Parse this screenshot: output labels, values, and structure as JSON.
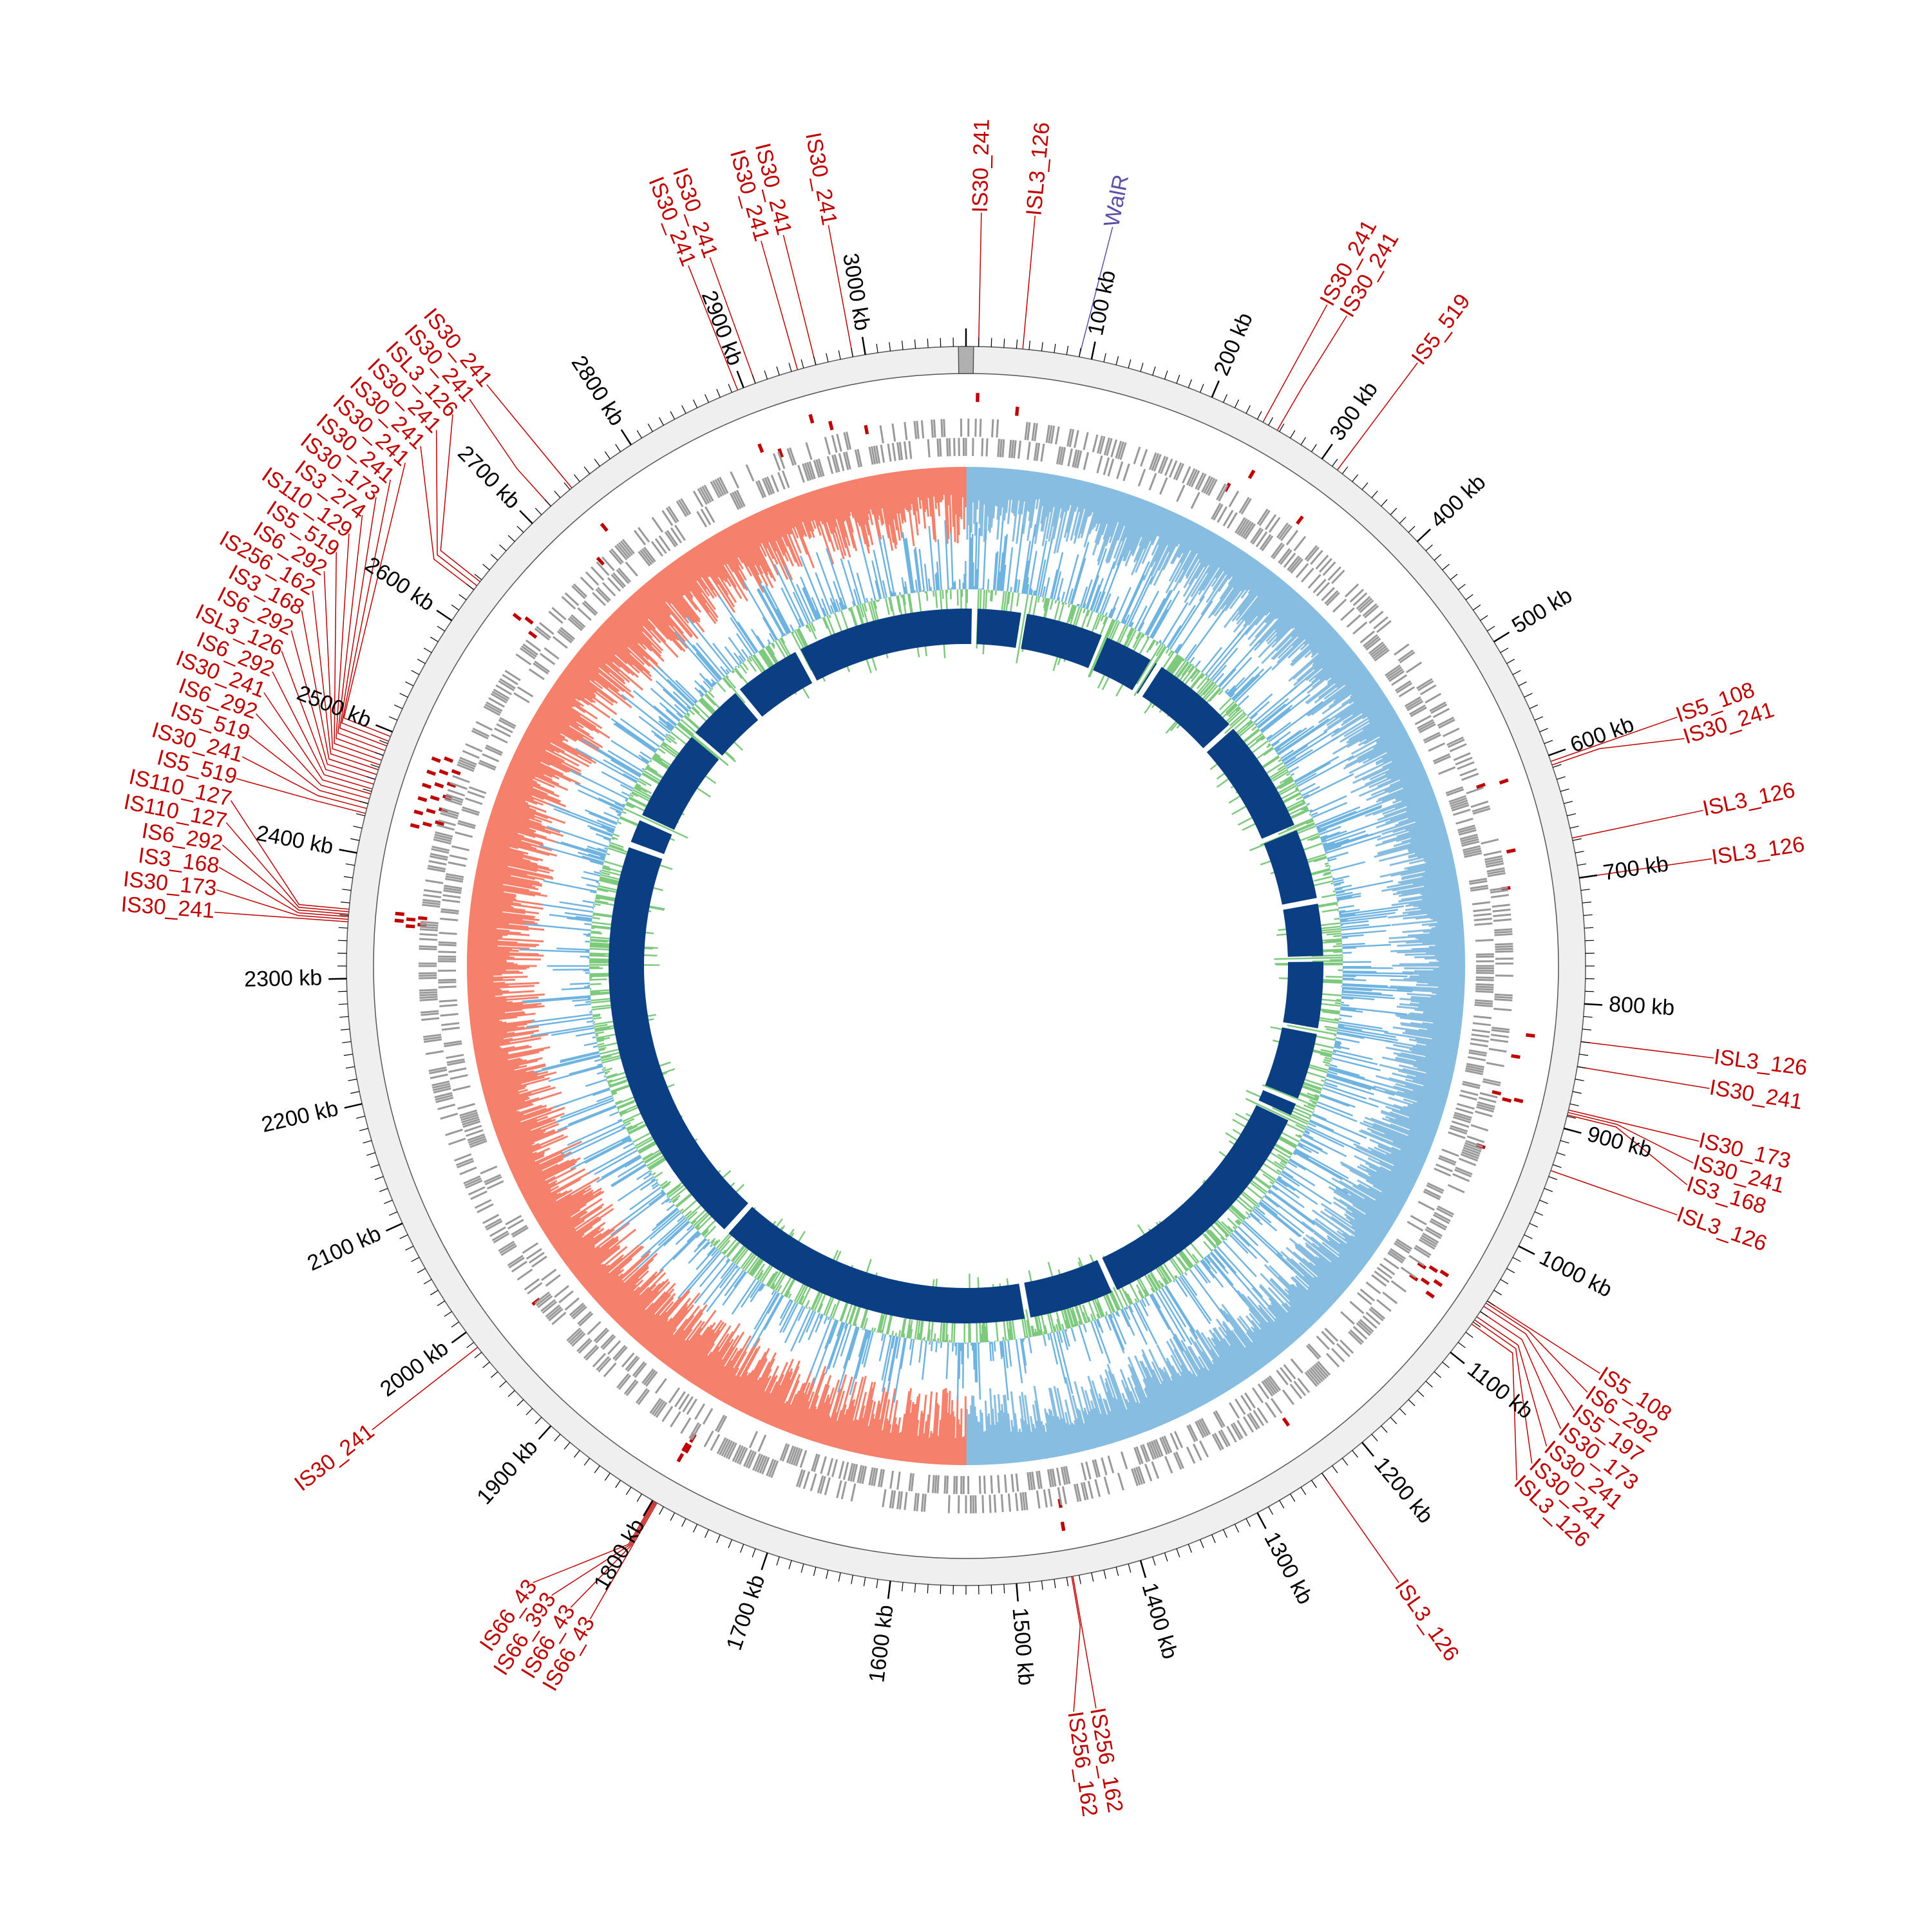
{
  "chart_data": {
    "type": "circular-genome-map",
    "genome_length_kb": 3080,
    "colors": {
      "is_element": "#c00000",
      "feature_highlight": "#5b4fa8",
      "backbone": "#efefef",
      "genes": "#999999",
      "gc_skew_positive": "#87bde0",
      "gc_skew_negative": "#f5806b",
      "gc_content_above": "#6fb4e0",
      "gc_content_below": "#7dc97d",
      "blocks": "#0b3f84",
      "ticks": "#000000"
    },
    "tick_labels": [
      {
        "kb": 100,
        "text": "100 kb"
      },
      {
        "kb": 200,
        "text": "200 kb"
      },
      {
        "kb": 300,
        "text": "300 kb"
      },
      {
        "kb": 400,
        "text": "400 kb"
      },
      {
        "kb": 500,
        "text": "500 kb"
      },
      {
        "kb": 600,
        "text": "600 kb"
      },
      {
        "kb": 700,
        "text": "700 kb"
      },
      {
        "kb": 800,
        "text": "800 kb"
      },
      {
        "kb": 900,
        "text": "900 kb"
      },
      {
        "kb": 1000,
        "text": "1000 kb"
      },
      {
        "kb": 1100,
        "text": "1100 kb"
      },
      {
        "kb": 1200,
        "text": "1200 kb"
      },
      {
        "kb": 1300,
        "text": "1300 kb"
      },
      {
        "kb": 1400,
        "text": "1400 kb"
      },
      {
        "kb": 1500,
        "text": "1500 kb"
      },
      {
        "kb": 1600,
        "text": "1600 kb"
      },
      {
        "kb": 1700,
        "text": "1700 kb"
      },
      {
        "kb": 1800,
        "text": "1800 kb"
      },
      {
        "kb": 1900,
        "text": "1900 kb"
      },
      {
        "kb": 2000,
        "text": "2000 kb"
      },
      {
        "kb": 2100,
        "text": "2100 kb"
      },
      {
        "kb": 2200,
        "text": "2200 kb"
      },
      {
        "kb": 2300,
        "text": "2300 kb"
      },
      {
        "kb": 2400,
        "text": "2400 kb"
      },
      {
        "kb": 2500,
        "text": "2500 kb"
      },
      {
        "kb": 2600,
        "text": "2600 kb"
      },
      {
        "kb": 2700,
        "text": "2700 kb"
      },
      {
        "kb": 2800,
        "text": "2800 kb"
      },
      {
        "kb": 2900,
        "text": "2900 kb"
      },
      {
        "kb": 3000,
        "text": "3000 kb"
      }
    ],
    "highlight_feature": {
      "kb": 90,
      "text": "WalR"
    },
    "is_elements": [
      {
        "kb": 10,
        "text": "IS30_241"
      },
      {
        "kb": 45,
        "text": "ISL3_126"
      },
      {
        "kb": 245,
        "text": "IS30_241"
      },
      {
        "kb": 258,
        "text": "IS30_241"
      },
      {
        "kb": 315,
        "text": "IS5_519"
      },
      {
        "kb": 605,
        "text": "IS5_108"
      },
      {
        "kb": 608,
        "text": "IS30_241"
      },
      {
        "kb": 668,
        "text": "ISL3_126"
      },
      {
        "kb": 700,
        "text": "ISL3_126"
      },
      {
        "kb": 830,
        "text": "ISL3_126"
      },
      {
        "kb": 850,
        "text": "IS30_241"
      },
      {
        "kb": 885,
        "text": "IS30_173"
      },
      {
        "kb": 887,
        "text": "IS30_241"
      },
      {
        "kb": 889,
        "text": "IS3_168"
      },
      {
        "kb": 935,
        "text": "ISL3_126"
      },
      {
        "kb": 1050,
        "text": "IS5_108"
      },
      {
        "kb": 1052,
        "text": "IS6_292"
      },
      {
        "kb": 1055,
        "text": "IS5_197"
      },
      {
        "kb": 1060,
        "text": "IS30_173"
      },
      {
        "kb": 1065,
        "text": "IS30_241"
      },
      {
        "kb": 1068,
        "text": "IS30_241"
      },
      {
        "kb": 1072,
        "text": "ISL3_126"
      },
      {
        "kb": 1240,
        "text": "ISL3_126"
      },
      {
        "kb": 1455,
        "text": "IS256_162"
      },
      {
        "kb": 1456,
        "text": "IS256_162"
      },
      {
        "kb": 1796,
        "text": "IS66_43"
      },
      {
        "kb": 1797,
        "text": "IS66_43"
      },
      {
        "kb": 1798,
        "text": "IS66_393"
      },
      {
        "kb": 1799,
        "text": "IS66_43"
      },
      {
        "kb": 1985,
        "text": "IS30_241"
      },
      {
        "kb": 2355,
        "text": "IS110_127"
      },
      {
        "kb": 2345,
        "text": "IS30_241"
      },
      {
        "kb": 2347,
        "text": "IS30_173"
      },
      {
        "kb": 2349,
        "text": "IS3_168"
      },
      {
        "kb": 2351,
        "text": "IS6_292"
      },
      {
        "kb": 2353,
        "text": "IS110_127"
      },
      {
        "kb": 2432,
        "text": "IS5_519"
      },
      {
        "kb": 2436,
        "text": "IS30_241"
      },
      {
        "kb": 2440,
        "text": "IS5_519"
      },
      {
        "kb": 2444,
        "text": "IS6_292"
      },
      {
        "kb": 2448,
        "text": "IS30_241"
      },
      {
        "kb": 2452,
        "text": "IS6_292"
      },
      {
        "kb": 2456,
        "text": "ISL3_126"
      },
      {
        "kb": 2460,
        "text": "IS6_292"
      },
      {
        "kb": 2464,
        "text": "IS3_168"
      },
      {
        "kb": 2468,
        "text": "IS256_162"
      },
      {
        "kb": 2472,
        "text": "IS6_292"
      },
      {
        "kb": 2476,
        "text": "IS5_519"
      },
      {
        "kb": 2480,
        "text": "IS110_129"
      },
      {
        "kb": 2484,
        "text": "IS3_274"
      },
      {
        "kb": 2488,
        "text": "IS30_173"
      },
      {
        "kb": 2492,
        "text": "IS30_241"
      },
      {
        "kb": 2496,
        "text": "IS30_241"
      },
      {
        "kb": 2630,
        "text": "IS30_241"
      },
      {
        "kb": 2634,
        "text": "IS30_241"
      },
      {
        "kb": 2638,
        "text": "ISL3_126"
      },
      {
        "kb": 2720,
        "text": "IS30_241"
      },
      {
        "kb": 2742,
        "text": "IS30_241"
      },
      {
        "kb": 2895,
        "text": "IS30_241"
      },
      {
        "kb": 2910,
        "text": "IS30_241"
      },
      {
        "kb": 2945,
        "text": "IS30_241"
      },
      {
        "kb": 2960,
        "text": "IS30_241"
      },
      {
        "kb": 2990,
        "text": "IS30_241"
      }
    ],
    "block_gaps_kb": [
      12,
      80,
      195,
      270,
      280,
      410,
      575,
      680,
      760,
      860,
      960,
      985,
      1330,
      1455,
      1900,
      2480,
      2520,
      2655,
      2740,
      2840
    ]
  }
}
